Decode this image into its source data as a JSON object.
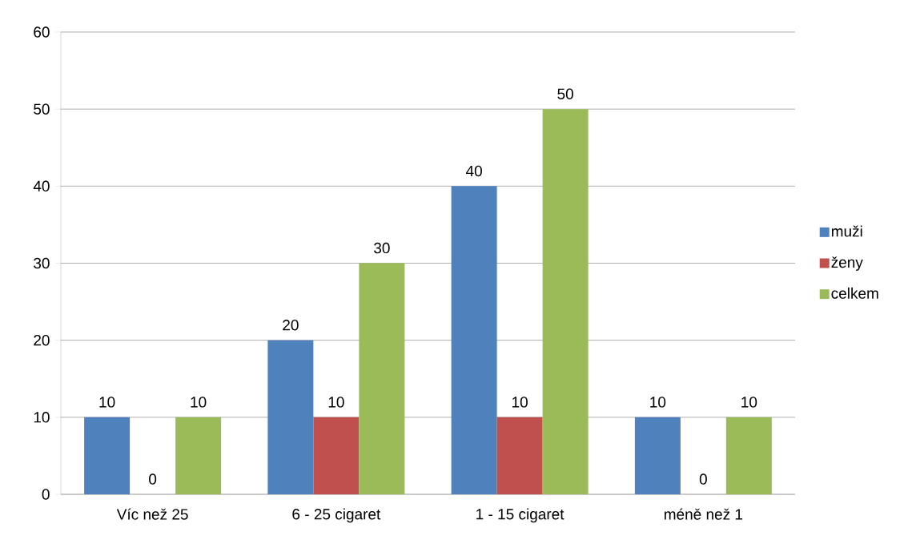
{
  "chart_data": {
    "type": "bar",
    "categories": [
      "Víc než 25",
      "6 - 25 cigaret",
      "1 - 15 cigaret",
      "méně než 1"
    ],
    "series": [
      {
        "name": "muži",
        "color": "#4f81bd",
        "values": [
          10,
          20,
          40,
          10
        ]
      },
      {
        "name": "ženy",
        "color": "#c0504d",
        "values": [
          0,
          10,
          10,
          0
        ]
      },
      {
        "name": "celkem",
        "color": "#9bbb59",
        "values": [
          10,
          30,
          50,
          10
        ]
      }
    ],
    "ylim": [
      0,
      60
    ],
    "yticks": [
      0,
      10,
      20,
      30,
      40,
      50,
      60
    ],
    "grid": "y",
    "legend": "right",
    "data_labels": true
  }
}
